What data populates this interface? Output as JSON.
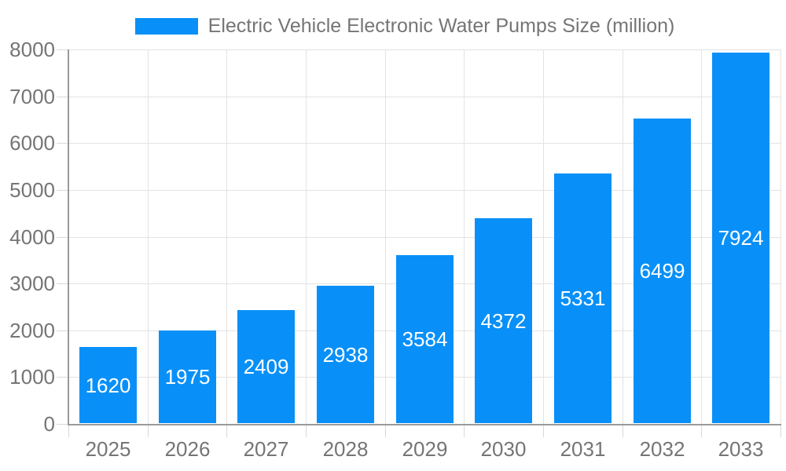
{
  "legend": {
    "series_label": "Electric Vehicle Electronic Water Pumps Size (million)"
  },
  "chart_data": {
    "type": "bar",
    "title": "Electric Vehicle Electronic Water Pumps Size (million)",
    "categories": [
      "2025",
      "2026",
      "2027",
      "2028",
      "2029",
      "2030",
      "2031",
      "2032",
      "2033"
    ],
    "values": [
      1620,
      1975,
      2409,
      2938,
      3584,
      4372,
      5331,
      6499,
      7924
    ],
    "xlabel": "",
    "ylabel": "",
    "ylim": [
      0,
      8000
    ],
    "yticks": [
      0,
      1000,
      2000,
      3000,
      4000,
      5000,
      6000,
      7000,
      8000
    ],
    "grid": true,
    "legend_position": "top",
    "bar_labels_inside": true
  },
  "colors": {
    "bar": "#0890f8",
    "bar_label": "#ffffff",
    "grid": "#e3e3e3",
    "tick": "#d9d9d9",
    "axis": "#9a9a9a",
    "text": "#757575",
    "background": "#ffffff"
  }
}
